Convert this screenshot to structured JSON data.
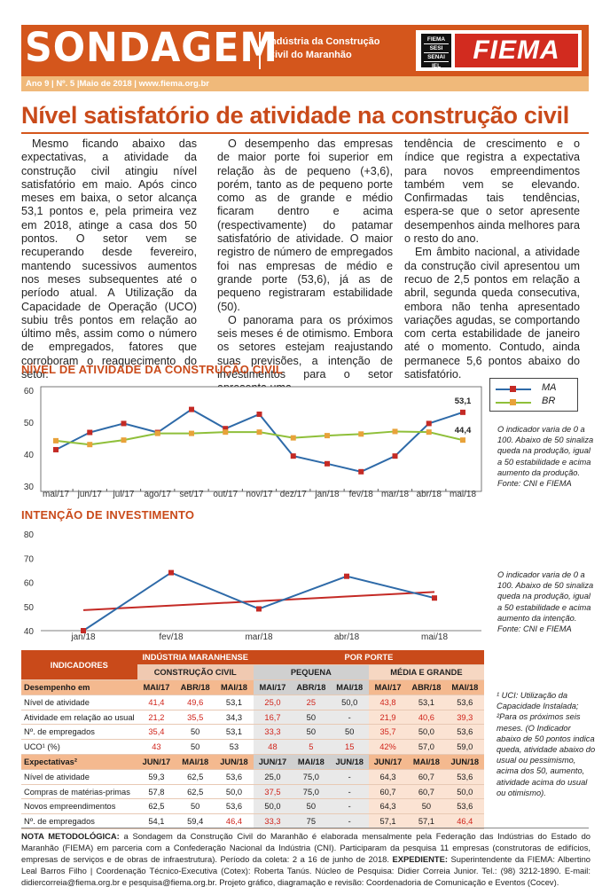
{
  "header": {
    "title": "SONDAGEM",
    "subtitle_line1": "Indústria da Construção",
    "subtitle_line2": "Civil do Maranhão",
    "logo_badge": [
      "FIEMA",
      "SESI",
      "SENAI",
      "IEL"
    ],
    "logo_text": "FIEMA",
    "issue_line": "Ano 9 | Nº. 5 |Maio de 2018 | www.fiema.org.br"
  },
  "headline": "Nível satisfatório de atividade na construção civil",
  "article": {
    "col1": [
      "Mesmo ficando abaixo das expectativas, a atividade da construção civil atingiu nível satisfatório em maio. Após cinco meses em baixa, o setor alcança 53,1 pontos e, pela primeira vez em 2018, atinge a casa dos 50 pontos. O setor vem se recuperando desde fevereiro, mantendo sucessivos aumentos nos meses subsequentes até o período atual. A Utilização da Capacidade de Operação (UCO) subiu três pontos em relação ao último mês, assim como o número de empregados, fatores que corroboram o reaquecimento do setor."
    ],
    "col2": [
      "O desempenho das empresas de maior porte foi superior em relação às de pequeno (+3,6), porém, tanto as de pequeno porte como as de grande e médio ficaram dentro e acima (respectivamente) do patamar satisfatório de atividade. O maior registro de número de empregados foi nas empresas de médio e grande porte (53,6), já as de pequeno registraram estabilidade (50).",
      "O panorama para os próximos seis meses é de otimismo. Embora os setores estejam reajustando suas previsões, a intenção de investimentos para o setor apresenta uma"
    ],
    "col3": [
      "tendência de crescimento e o índice que registra a expectativa para novos empreendimentos também vem se elevando. Confirmadas tais tendências, espera-se que o setor apresente desempenhos ainda melhores para o resto do ano.",
      "Em âmbito nacional, a atividade da construção civil apresentou um recuo de 2,5 pontos em relação a abril, segunda queda consecutiva, embora não tenha apresentado variações agudas, se comportando com certa estabilidade de janeiro até o momento. Contudo, ainda permanece 5,6 pontos abaixo do satisfatório."
    ]
  },
  "chart_data": [
    {
      "type": "line",
      "title": "NÍVEL DE ATIVIDADE DA CONSTRUÇÃO CIVIL",
      "categories": [
        "mai/17",
        "jun/17",
        "jul/17",
        "ago/17",
        "set/17",
        "out/17",
        "nov/17",
        "dez/17",
        "jan/18",
        "fev/18",
        "mar/18",
        "abr/18",
        "mai/18"
      ],
      "series": [
        {
          "name": "MA",
          "color": "#2e6aa8",
          "values": [
            41.4,
            46.8,
            49.6,
            46.8,
            54.0,
            48.0,
            52.5,
            39.4,
            37.0,
            34.5,
            39.4,
            49.6,
            53.1
          ],
          "end_label": "53,1"
        },
        {
          "name": "BR",
          "color": "#8fbf3a",
          "values": [
            44.2,
            43.0,
            44.4,
            46.5,
            46.5,
            46.9,
            46.9,
            45.1,
            45.8,
            46.3,
            47.1,
            46.9,
            44.4
          ],
          "end_label": "44,4"
        }
      ],
      "ylim": [
        30,
        60
      ],
      "yticks": [
        30,
        40,
        50,
        60
      ],
      "grid": false,
      "legend": "top-right",
      "note": "O indicador varia de 0 a 100. Abaixo de 50 sinaliza queda na produção, igual a 50 estabilidade e acima aumento da produção. Fonte: CNI e FIEMA"
    },
    {
      "type": "line",
      "title": "INTENÇÃO DE INVESTIMENTO",
      "categories": [
        "jan/18",
        "fev/18",
        "mar/18",
        "abr/18",
        "mai/18"
      ],
      "series": [
        {
          "name": "",
          "color": "#2e6aa8",
          "values": [
            40.0,
            64.0,
            49.0,
            62.5,
            53.5
          ]
        }
      ],
      "trend": {
        "color": "#c42a25",
        "start": 48.5,
        "end": 56.0
      },
      "ylim": [
        40,
        80
      ],
      "yticks": [
        40,
        50,
        60,
        70,
        80
      ],
      "grid": false,
      "note": "O indicador varia de 0 a 100. Abaixo de 50 sinaliza queda na produção, igual a 50 estabilidade e acima aumento da intenção. Fonte: CNI e FIEMA"
    }
  ],
  "table": {
    "head_indicadores": "INDICADORES",
    "head_industria": "INDÚSTRIA MARANHENSE",
    "head_porte": "POR PORTE",
    "head_construcao": "CONSTRUÇÃO CIVIL",
    "head_pequena": "PEQUENA",
    "head_media": "MÉDIA E GRANDE",
    "sections": [
      {
        "label": "Desempenho em",
        "cols": [
          "MAI/17",
          "ABR/18",
          "MAI/18",
          "MAI/17",
          "ABR/18",
          "MAI/18",
          "MAI/17",
          "ABR/18",
          "MAI/18"
        ],
        "rows": [
          {
            "label": "Nível de atividade",
            "values": [
              "41,4",
              "49,6",
              "53,1",
              "25,0",
              "25",
              "50,0",
              "43,8",
              "53,1",
              "53,6"
            ],
            "red": [
              0,
              1,
              3,
              4,
              6
            ]
          },
          {
            "label": "Atividade em relação ao usual",
            "values": [
              "21,2",
              "35,5",
              "34,3",
              "16,7",
              "50",
              "-",
              "21,9",
              "40,6",
              "39,3"
            ],
            "red": [
              0,
              1,
              3,
              6,
              7,
              8
            ]
          },
          {
            "label": "Nº. de empregados",
            "values": [
              "35,4",
              "50",
              "53,1",
              "33,3",
              "50",
              "50",
              "35,7",
              "50,0",
              "53,6"
            ],
            "red": [
              0,
              3,
              6
            ]
          },
          {
            "label": "UCO¹ (%)",
            "values": [
              "43",
              "50",
              "53",
              "48",
              "5",
              "15",
              "42%",
              "57,0",
              "59,0"
            ],
            "red": [
              0,
              3,
              4,
              5,
              6
            ]
          }
        ]
      },
      {
        "label": "Expectativas²",
        "cols": [
          "JUN/17",
          "MAI/18",
          "JUN/18",
          "JUN/17",
          "MAI/18",
          "JUN/18",
          "JUN/17",
          "MAI/18",
          "JUN/18"
        ],
        "rows": [
          {
            "label": "Nível de atividade",
            "values": [
              "59,3",
              "62,5",
              "53,6",
              "25,0",
              "75,0",
              "-",
              "64,3",
              "60,7",
              "53,6"
            ],
            "red": []
          },
          {
            "label": "Compras de matérias-primas",
            "values": [
              "57,8",
              "62,5",
              "50,0",
              "37,5",
              "75,0",
              "-",
              "60,7",
              "60,7",
              "50,0"
            ],
            "red": [
              3
            ]
          },
          {
            "label": "Novos empreendimentos",
            "values": [
              "62,5",
              "50",
              "53,6",
              "50,0",
              "50",
              "-",
              "64,3",
              "50",
              "53,6"
            ],
            "red": []
          },
          {
            "label": "Nº. de empregados",
            "values": [
              "54,1",
              "59,4",
              "46,4",
              "33,3",
              "75",
              "-",
              "57,1",
              "57,1",
              "46,4"
            ],
            "red": [
              2,
              3,
              8
            ]
          }
        ]
      }
    ],
    "note": "¹ UCI: Utilização da Capacidade Instalada; ²Para os próximos seis meses. (O Indicador abaixo de 50 pontos indica queda, atividade abaixo do usual ou pessimismo, acima dos 50, aumento, atividade acima do usual ou otimismo)."
  },
  "footer": {
    "label": "NOTA METODOLÓGICA:",
    "text1": " a Sondagem da Construção Civil do Maranhão é elaborada mensalmente pela Federação das Indústrias do Estado do Maranhão (FIEMA) em parceria com a Confederação Nacional da Indústria (CNI). Participaram da pesquisa 11 empresas (construtoras de edifícios, empresas de serviços e de obras de infraestrutura). Período da coleta: 2 a 16 de junho de 2018. ",
    "label2": "EXPEDIENTE:",
    "text2": " Superintendente da FIEMA: Albertino Leal Barros Filho | Coordenação Técnico-Executiva (Cotex): Roberta Tanús. Núcleo de Pesquisa: Didier Correia Junior. Tel.: (98) 3212-1890. E-mail: didiercorreia@fiema.org.br e pesquisa@fiema.org.br. Projeto gráfico, diagramação e revisão: Coordenadoria de Comunicação e Eventos (Cocev)."
  }
}
